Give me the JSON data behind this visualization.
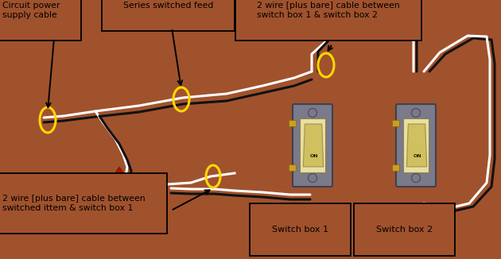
{
  "bg_color": "#A0522D",
  "fig_width": 6.3,
  "fig_height": 3.26,
  "dpi": 100,
  "labels": {
    "circuit_power": "Circuit power\nsupply cable",
    "series_feed": "Series switched feed",
    "cable_between_switches": "2 wire [plus bare] cable between\nswitch box 1 & switch box 2",
    "cable_to_switch1": "2 wire [plus bare] cable between\nswitched ittem & switch box 1",
    "switch_box1": "Switch box 1",
    "switch_box2": "Switch box 2"
  },
  "wire_white": "#FFFFFF",
  "wire_black": "#111111",
  "switch_plate": "#7A7A8A",
  "switch_body": "#E8E0A0",
  "switch_toggle": "#D0C060",
  "terminal_color": "#C8A020",
  "oval_color": "#FFD700",
  "label_bg": "#A0522D",
  "label_edge": "#000000"
}
